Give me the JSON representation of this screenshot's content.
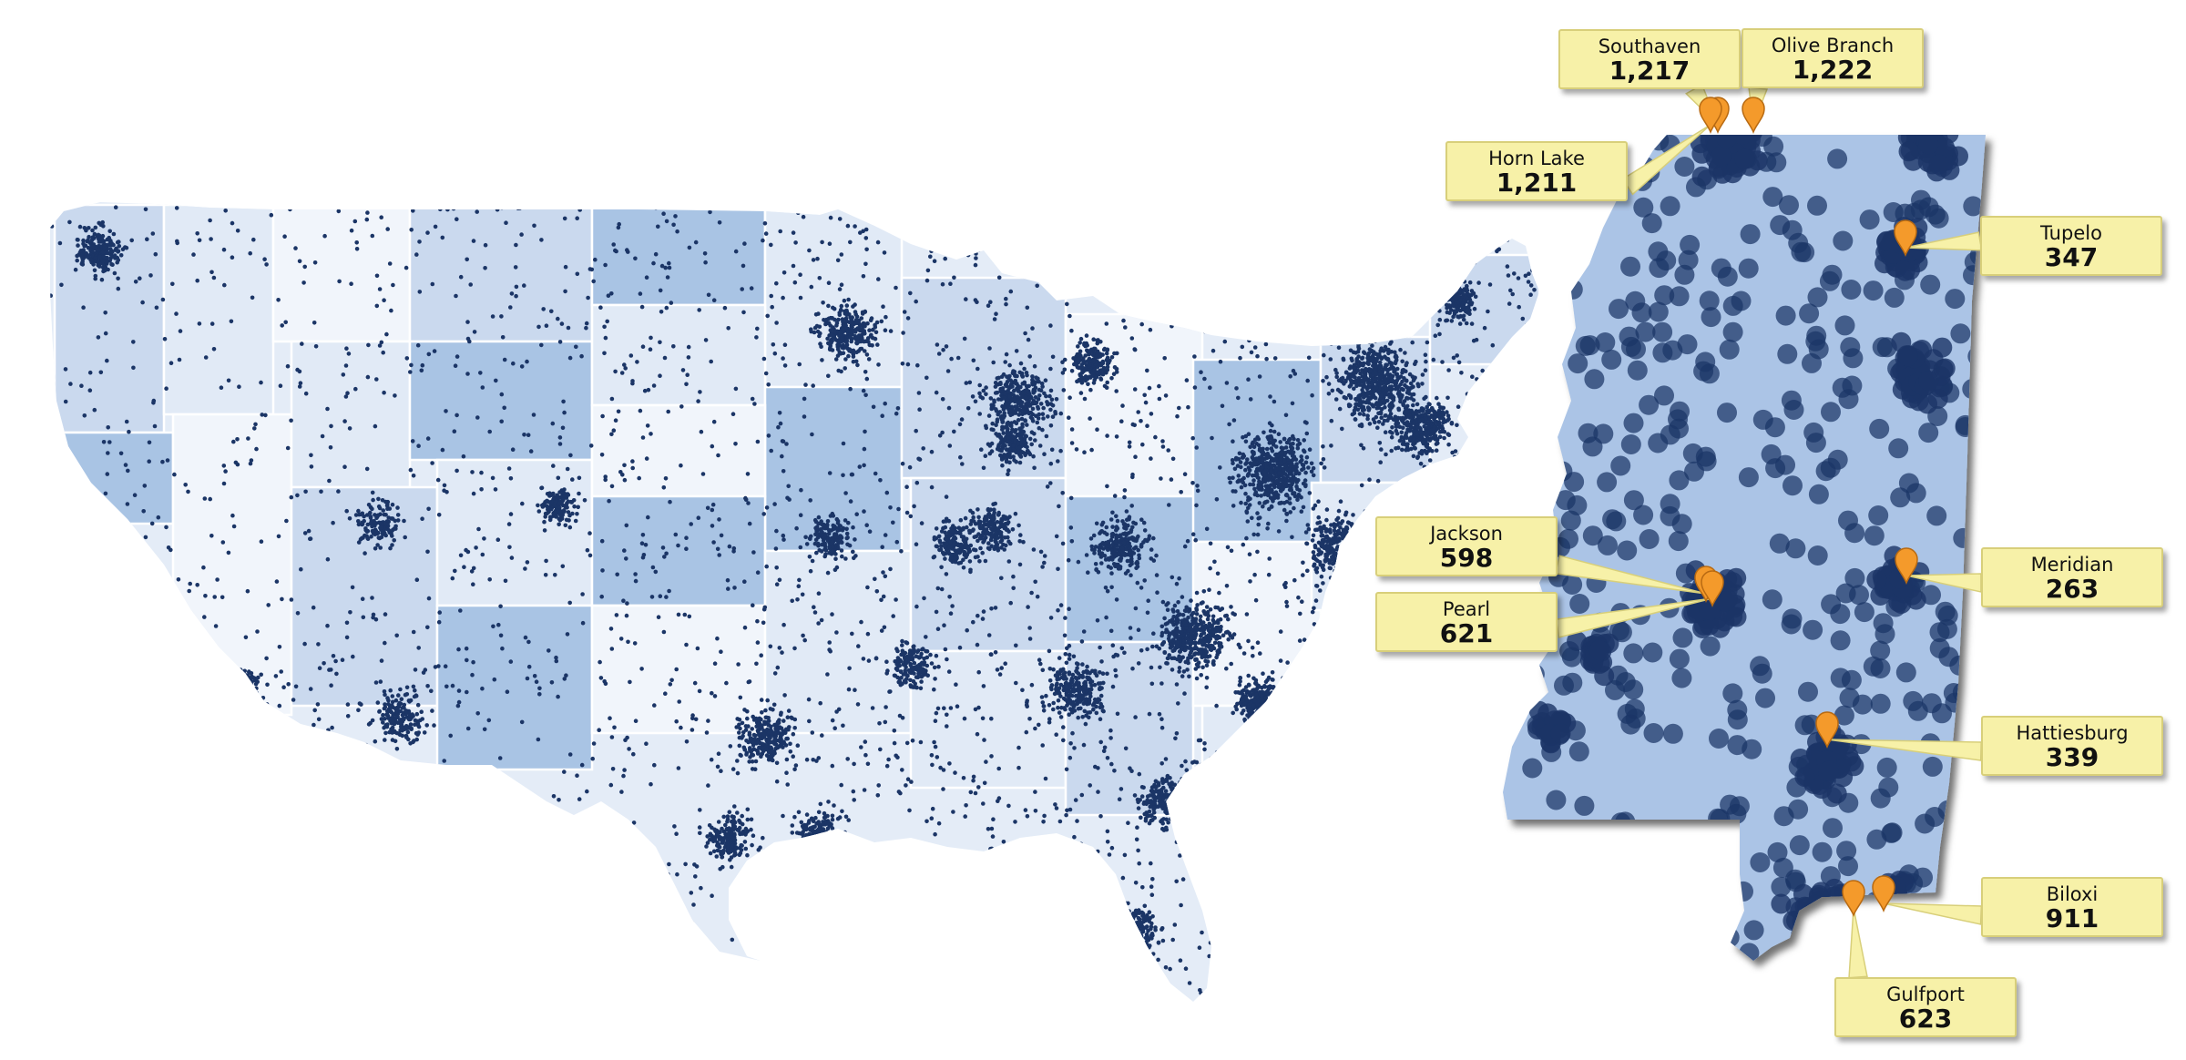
{
  "maps": {
    "us": {
      "name": "contiguous-us-map"
    },
    "ms": {
      "name": "mississippi-map"
    }
  },
  "colors": {
    "background": "#ffffff",
    "state_shades": [
      "#f1f5fb",
      "#e1eaf6",
      "#cad9ee",
      "#a9c4e4"
    ],
    "state_border": "#ffffff",
    "dot": "#1b3566",
    "mississippi_fill": "#abc4e6",
    "pin": "#f49a2b",
    "callout_fill": "#f7f1a8"
  },
  "icons": {
    "marker": "map-pin-icon"
  },
  "callouts": [
    {
      "city": "Southaven",
      "count": "1,217"
    },
    {
      "city": "Olive Branch",
      "count": "1,222"
    },
    {
      "city": "Horn Lake",
      "count": "1,211"
    },
    {
      "city": "Tupelo",
      "count": "347"
    },
    {
      "city": "Jackson",
      "count": "598"
    },
    {
      "city": "Pearl",
      "count": "621"
    },
    {
      "city": "Meridian",
      "count": "263"
    },
    {
      "city": "Hattiesburg",
      "count": "339"
    },
    {
      "city": "Biloxi",
      "count": "911"
    },
    {
      "city": "Gulfport",
      "count": "623"
    }
  ]
}
